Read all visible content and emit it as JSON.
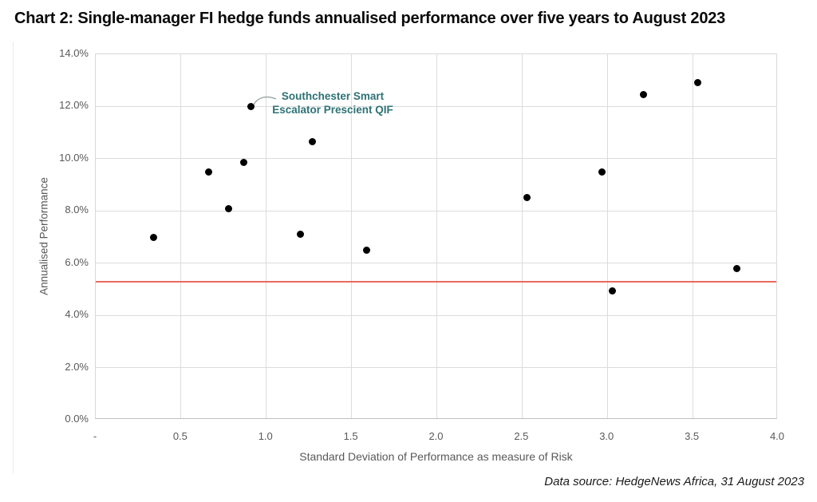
{
  "title": "Chart 2: Single-manager FI hedge funds annualised performance over five years to August 2023",
  "footer": {
    "data_source": "Data source: HedgeNews Africa, 31 August 2023"
  },
  "colors": {
    "point": "#000000",
    "grid": "#dcdcdc",
    "axis_text": "#595959",
    "reference_line": "#e96a5e",
    "annotation_text": "#2e7276",
    "connector": "#9aa3a3"
  },
  "chart_data": {
    "type": "scatter",
    "title": "Chart 2: Single-manager FI hedge funds annualised performance over five years to August 2023",
    "xlabel": "Standard Deviation of Performance as measure of Risk",
    "ylabel": "Annualised Performance",
    "xlim": [
      0,
      4.0
    ],
    "ylim": [
      0,
      14.0
    ],
    "grid": true,
    "legend": "none",
    "x_ticks": [
      {
        "label": "-",
        "value": 0
      },
      {
        "label": "0.5",
        "value": 0.5
      },
      {
        "label": "1.0",
        "value": 1.0
      },
      {
        "label": "1.5",
        "value": 1.5
      },
      {
        "label": "2.0",
        "value": 2.0
      },
      {
        "label": "2.5",
        "value": 2.5
      },
      {
        "label": "3.0",
        "value": 3.0
      },
      {
        "label": "3.5",
        "value": 3.5
      },
      {
        "label": "4.0",
        "value": 4.0
      }
    ],
    "y_ticks": [
      {
        "label": "0.0%",
        "value": 0
      },
      {
        "label": "2.0%",
        "value": 2
      },
      {
        "label": "4.0%",
        "value": 4
      },
      {
        "label": "6.0%",
        "value": 6
      },
      {
        "label": "8.0%",
        "value": 8
      },
      {
        "label": "10.0%",
        "value": 10
      },
      {
        "label": "12.0%",
        "value": 12
      },
      {
        "label": "14.0%",
        "value": 14
      }
    ],
    "points": [
      {
        "x": 0.34,
        "y": 7.0
      },
      {
        "x": 0.66,
        "y": 9.5
      },
      {
        "x": 0.78,
        "y": 8.1
      },
      {
        "x": 0.87,
        "y": 9.85
      },
      {
        "x": 0.91,
        "y": 12.0
      },
      {
        "x": 1.2,
        "y": 7.1
      },
      {
        "x": 1.27,
        "y": 10.65
      },
      {
        "x": 1.59,
        "y": 6.5
      },
      {
        "x": 2.53,
        "y": 8.5
      },
      {
        "x": 2.97,
        "y": 9.5
      },
      {
        "x": 3.03,
        "y": 4.95
      },
      {
        "x": 3.21,
        "y": 12.45
      },
      {
        "x": 3.53,
        "y": 12.9
      },
      {
        "x": 3.76,
        "y": 5.8
      }
    ],
    "annotation": {
      "lines": [
        "Southchester Smart",
        "Escalator Prescient QIF"
      ],
      "target_point": {
        "x": 0.91,
        "y": 12.0
      }
    },
    "reference_line": {
      "y": 5.3
    }
  }
}
